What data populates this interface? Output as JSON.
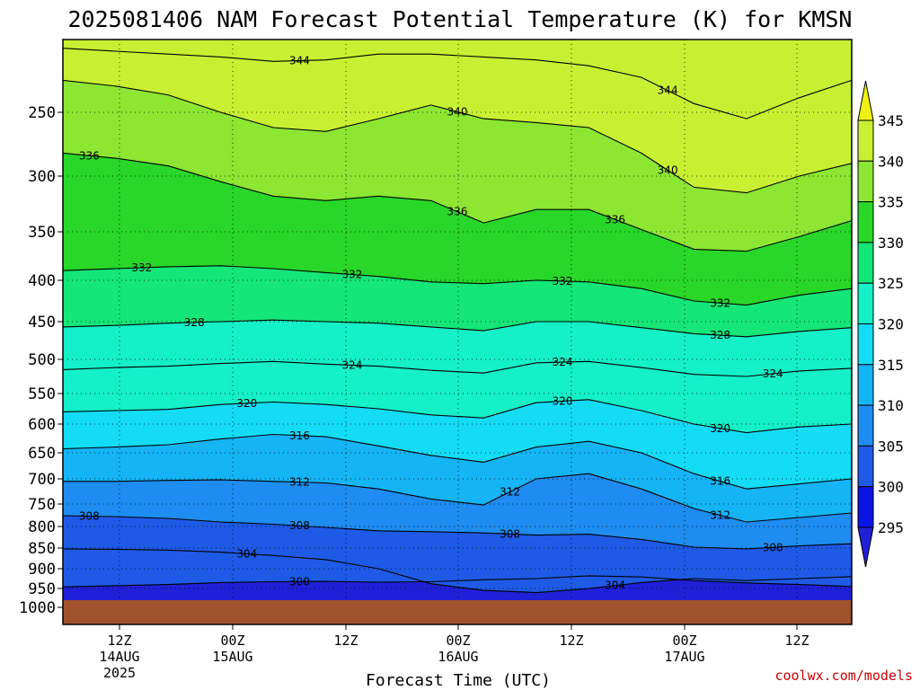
{
  "chart_data": {
    "type": "heatmap",
    "title": "2025081406 NAM Forecast Potential Temperature (K) for KMSN",
    "xlabel": "Forecast Time (UTC)",
    "ylabel": "",
    "y_scale": "pressure (inverted, log-like)",
    "y_range": [
      1000,
      200
    ],
    "y_ticks": [
      250,
      300,
      350,
      400,
      450,
      500,
      550,
      600,
      650,
      700,
      750,
      800,
      850,
      900,
      950,
      1000
    ],
    "x_ticks": [
      {
        "label": "12Z",
        "sub": [
          "14AUG",
          "2025"
        ]
      },
      {
        "label": "00Z",
        "sub": [
          "15AUG"
        ]
      },
      {
        "label": "12Z",
        "sub": []
      },
      {
        "label": "00Z",
        "sub": [
          "16AUG"
        ]
      },
      {
        "label": "12Z",
        "sub": []
      },
      {
        "label": "00Z",
        "sub": [
          "17AUG"
        ]
      },
      {
        "label": "12Z",
        "sub": []
      }
    ],
    "colorbar": {
      "ticks": [
        295,
        300,
        305,
        310,
        315,
        320,
        325,
        330,
        335,
        340,
        345
      ],
      "bins": [
        {
          "min": 290,
          "max": 295,
          "color": "#2020d8"
        },
        {
          "min": 295,
          "max": 300,
          "color": "#0a14e6"
        },
        {
          "min": 300,
          "max": 305,
          "color": "#1e5ae6"
        },
        {
          "min": 305,
          "max": 310,
          "color": "#1e8cf0"
        },
        {
          "min": 310,
          "max": 315,
          "color": "#14b4f5"
        },
        {
          "min": 315,
          "max": 320,
          "color": "#14dcf5"
        },
        {
          "min": 320,
          "max": 325,
          "color": "#14f0c8"
        },
        {
          "min": 325,
          "max": 330,
          "color": "#14e678"
        },
        {
          "min": 330,
          "max": 335,
          "color": "#28d728"
        },
        {
          "min": 335,
          "max": 340,
          "color": "#8ce632"
        },
        {
          "min": 340,
          "max": 345,
          "color": "#c8f032"
        },
        {
          "min": 345,
          "max": 350,
          "color": "#f0f014"
        }
      ]
    },
    "series": [
      {
        "level": 300,
        "values": [
          946,
          943,
          940,
          935,
          933,
          932,
          934,
          933,
          928,
          925,
          918,
          921,
          930,
          936,
          940,
          945
        ]
      },
      {
        "level": 304,
        "values": [
          852,
          853,
          855,
          860,
          868,
          878,
          900,
          938,
          955,
          961,
          950,
          935,
          925,
          930,
          925,
          920
        ]
      },
      {
        "level": 308,
        "values": [
          776,
          778,
          782,
          790,
          795,
          802,
          810,
          812,
          815,
          820,
          818,
          830,
          848,
          852,
          845,
          840
        ]
      },
      {
        "level": 312,
        "values": [
          705,
          705,
          703,
          702,
          705,
          708,
          720,
          740,
          752,
          700,
          690,
          720,
          760,
          790,
          780,
          770
        ]
      },
      {
        "level": 316,
        "values": [
          643,
          640,
          636,
          626,
          618,
          622,
          638,
          655,
          668,
          640,
          630,
          650,
          690,
          720,
          710,
          700
        ]
      },
      {
        "level": 320,
        "values": [
          580,
          578,
          576,
          568,
          564,
          568,
          575,
          585,
          590,
          565,
          560,
          578,
          600,
          615,
          605,
          600
        ]
      },
      {
        "level": 324,
        "values": [
          515,
          512,
          510,
          506,
          503,
          507,
          510,
          516,
          520,
          505,
          503,
          512,
          522,
          525,
          517,
          513
        ]
      },
      {
        "level": 328,
        "values": [
          457,
          455,
          452,
          450,
          448,
          450,
          452,
          457,
          462,
          450,
          450,
          458,
          466,
          470,
          463,
          458
        ]
      },
      {
        "level": 332,
        "values": [
          390,
          388,
          386,
          385,
          388,
          392,
          396,
          402,
          404,
          400,
          402,
          410,
          425,
          430,
          418,
          410
        ]
      },
      {
        "level": 336,
        "values": [
          282,
          286,
          292,
          305,
          318,
          322,
          318,
          322,
          342,
          330,
          330,
          348,
          368,
          370,
          355,
          340
        ]
      },
      {
        "level": 340,
        "values": [
          228,
          232,
          238,
          250,
          262,
          265,
          255,
          245,
          255,
          258,
          262,
          282,
          310,
          315,
          300,
          290
        ]
      },
      {
        "level": 344,
        "values": [
          206,
          208,
          210,
          212,
          215,
          214,
          210,
          210,
          212,
          214,
          218,
          226,
          244,
          255,
          240,
          228
        ]
      }
    ],
    "contour_labels": [
      {
        "text": "344",
        "level": 344,
        "seg": 4
      },
      {
        "text": "340",
        "level": 340,
        "seg": 7
      },
      {
        "text": "344",
        "level": 344,
        "seg": 11
      },
      {
        "text": "336",
        "level": 336,
        "seg": 0
      },
      {
        "text": "340",
        "level": 340,
        "seg": 11
      },
      {
        "text": "336",
        "level": 336,
        "seg": 7
      },
      {
        "text": "336",
        "level": 336,
        "seg": 10
      },
      {
        "text": "332",
        "level": 332,
        "seg": 1
      },
      {
        "text": "332",
        "level": 332,
        "seg": 5
      },
      {
        "text": "332",
        "level": 332,
        "seg": 9
      },
      {
        "text": "332",
        "level": 332,
        "seg": 12
      },
      {
        "text": "328",
        "level": 328,
        "seg": 2
      },
      {
        "text": "328",
        "level": 328,
        "seg": 12
      },
      {
        "text": "324",
        "level": 324,
        "seg": 5
      },
      {
        "text": "324",
        "level": 324,
        "seg": 9
      },
      {
        "text": "324",
        "level": 324,
        "seg": 13
      },
      {
        "text": "320",
        "level": 320,
        "seg": 3
      },
      {
        "text": "320",
        "level": 320,
        "seg": 9
      },
      {
        "text": "320",
        "level": 320,
        "seg": 12
      },
      {
        "text": "316",
        "level": 316,
        "seg": 4
      },
      {
        "text": "316",
        "level": 316,
        "seg": 12
      },
      {
        "text": "312",
        "level": 312,
        "seg": 4
      },
      {
        "text": "312",
        "level": 312,
        "seg": 8
      },
      {
        "text": "312",
        "level": 312,
        "seg": 12
      },
      {
        "text": "308",
        "level": 308,
        "seg": 0
      },
      {
        "text": "308",
        "level": 308,
        "seg": 4
      },
      {
        "text": "308",
        "level": 308,
        "seg": 8
      },
      {
        "text": "308",
        "level": 308,
        "seg": 13
      },
      {
        "text": "304",
        "level": 304,
        "seg": 3
      },
      {
        "text": "304",
        "level": 304,
        "seg": 10
      },
      {
        "text": "300",
        "level": 300,
        "seg": 4
      }
    ],
    "ground_color": "#a0522d",
    "grid": "dotted"
  },
  "credit": "coolwx.com/models"
}
